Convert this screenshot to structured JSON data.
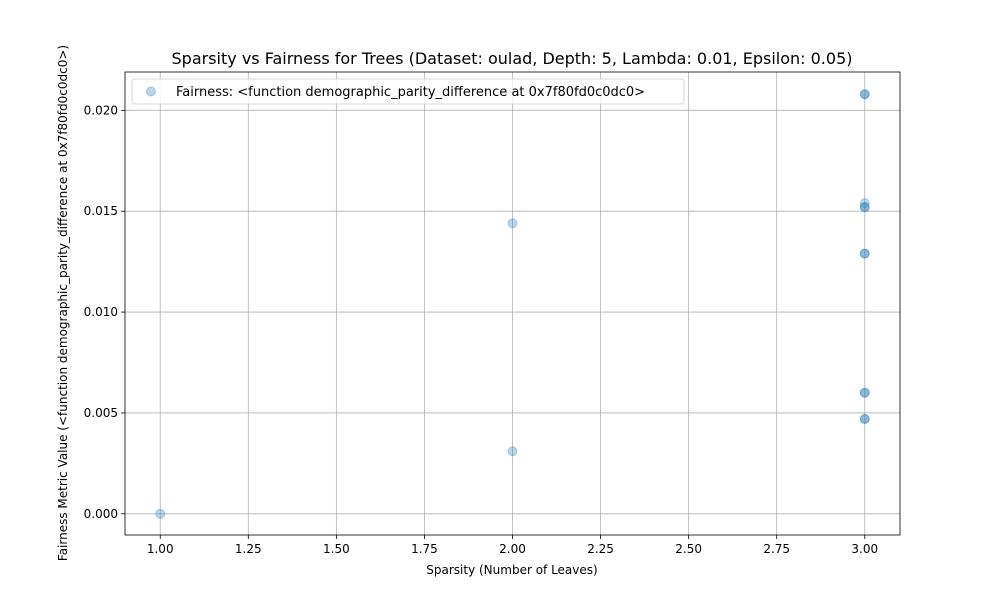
{
  "chart_data": {
    "type": "scatter",
    "title": "Sparsity vs Fairness for Trees (Dataset: oulad, Depth: 5, Lambda: 0.01, Epsilon: 0.05)",
    "xlabel": "Sparsity (Number of Leaves)",
    "ylabel": "Fairness Metric Value (<function demographic_parity_difference at 0x7f80fd0c0dc0>)",
    "xlim": [
      0.9,
      3.1
    ],
    "ylim": [
      -0.00105,
      0.0219
    ],
    "xticks": [
      1.0,
      1.25,
      1.5,
      1.75,
      2.0,
      2.25,
      2.5,
      2.75,
      3.0
    ],
    "xtick_labels": [
      "1.00",
      "1.25",
      "1.50",
      "1.75",
      "2.00",
      "2.25",
      "2.50",
      "2.75",
      "3.00"
    ],
    "yticks": [
      0.0,
      0.005,
      0.01,
      0.015,
      0.02
    ],
    "ytick_labels": [
      "0.000",
      "0.005",
      "0.010",
      "0.015",
      "0.020"
    ],
    "grid": true,
    "legend_position": "upper-left",
    "color": "#1f77b4",
    "series": [
      {
        "name": "Fairness: <function demographic_parity_difference at 0x7f80fd0c0dc0>",
        "points": [
          {
            "x": 1,
            "y": 0.0
          },
          {
            "x": 2,
            "y": 0.0031
          },
          {
            "x": 2,
            "y": 0.0144
          },
          {
            "x": 3,
            "y": 0.0208
          },
          {
            "x": 3,
            "y": 0.0208
          },
          {
            "x": 3,
            "y": 0.0154
          },
          {
            "x": 3,
            "y": 0.0152
          },
          {
            "x": 3,
            "y": 0.0152
          },
          {
            "x": 3,
            "y": 0.0129
          },
          {
            "x": 3,
            "y": 0.0129
          },
          {
            "x": 3,
            "y": 0.006
          },
          {
            "x": 3,
            "y": 0.006
          },
          {
            "x": 3,
            "y": 0.0047
          },
          {
            "x": 3,
            "y": 0.0047
          }
        ]
      }
    ]
  }
}
